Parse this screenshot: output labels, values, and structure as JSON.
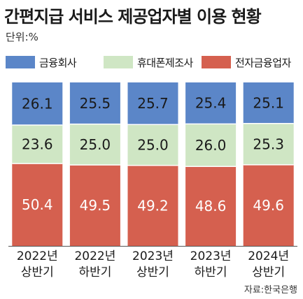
{
  "header": {
    "title": "간편지급 서비스 제공업자별 이용 현황",
    "unit": "단위:%"
  },
  "source": "자료:한국은행",
  "colors": {
    "fin": "#5b86c8",
    "mobile": "#cfe6c4",
    "efin": "#d5604f"
  },
  "chart_data": {
    "type": "bar",
    "stacked": true,
    "title": "간편지급 서비스 제공업자별 이용 현황",
    "unit": "단위:%",
    "categories": [
      [
        "2022년",
        "상반기"
      ],
      [
        "2022년",
        "하반기"
      ],
      [
        "2023년",
        "상반기"
      ],
      [
        "2023년",
        "하반기"
      ],
      [
        "2024년",
        "상반기"
      ]
    ],
    "series": [
      {
        "name": "금융회사",
        "values": [
          26.1,
          25.5,
          25.7,
          25.4,
          25.1
        ],
        "color": "#5b86c8"
      },
      {
        "name": "휴대폰제조사",
        "values": [
          23.6,
          25.0,
          25.0,
          26.0,
          25.3
        ],
        "color": "#cfe6c4"
      },
      {
        "name": "전자금융업자",
        "values": [
          50.4,
          49.5,
          49.2,
          48.6,
          49.6
        ],
        "color": "#d5604f"
      }
    ],
    "legend_position": "top",
    "grid": false
  }
}
